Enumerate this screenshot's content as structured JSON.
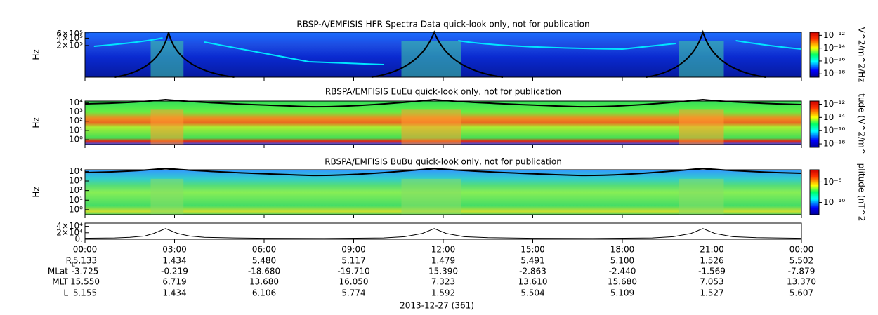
{
  "chart_data": [
    {
      "type": "spectrogram",
      "title": "RBSP-A/EMFISIS  HFR Spectra Data quick-look only, not for publication",
      "y_label": "Hz",
      "log_y": true,
      "ylim": [
        10000,
        700000
      ],
      "yticks": [
        {
          "value": 200000,
          "label": "2×10⁵"
        },
        {
          "value": 400000,
          "label": "4×10⁵"
        },
        {
          "value": 600000,
          "label": "6×10⁵"
        }
      ],
      "colorbar_label": "V^2/m^2/Hz",
      "zlim": [
        3e-19,
        3e-12
      ],
      "zticks": [
        {
          "value": 1e-12,
          "label": "10⁻¹²"
        },
        {
          "value": 1e-14,
          "label": "10⁻¹⁴"
        },
        {
          "value": 1e-16,
          "label": "10⁻¹⁶"
        },
        {
          "value": 1e-18,
          "label": "10⁻¹⁸"
        }
      ]
    },
    {
      "type": "spectrogram",
      "title": "RBSPA/EMFISIS  EuEu quick-look only, not for publication",
      "y_label": "Hz",
      "log_y": true,
      "ylim": [
        0.3,
        15000
      ],
      "yticks": [
        {
          "value": 1,
          "label": "10⁰"
        },
        {
          "value": 10,
          "label": "10¹"
        },
        {
          "value": 100,
          "label": "10²"
        },
        {
          "value": 1000,
          "label": "10³"
        },
        {
          "value": 10000,
          "label": "10⁴"
        }
      ],
      "colorbar_label": "tude (V^2/m^",
      "zlim": [
        3e-19,
        3e-12
      ],
      "zticks": [
        {
          "value": 1e-12,
          "label": "10⁻¹²"
        },
        {
          "value": 1e-14,
          "label": "10⁻¹⁴"
        },
        {
          "value": 1e-16,
          "label": "10⁻¹⁶"
        },
        {
          "value": 1e-18,
          "label": "10⁻¹⁸"
        }
      ]
    },
    {
      "type": "spectrogram",
      "title": "RBSPA/EMFISIS  BuBu quick-look only, not for publication",
      "y_label": "Hz",
      "log_y": true,
      "ylim": [
        0.3,
        15000
      ],
      "yticks": [
        {
          "value": 1,
          "label": "10⁰"
        },
        {
          "value": 10,
          "label": "10¹"
        },
        {
          "value": 100,
          "label": "10²"
        },
        {
          "value": 1000,
          "label": "10³"
        },
        {
          "value": 10000,
          "label": "10⁴"
        }
      ],
      "colorbar_label": "plitude (nT^2",
      "zlim": [
        1e-13,
        0.01
      ],
      "zticks": [
        {
          "value": 1e-05,
          "label": "10⁻⁵"
        },
        {
          "value": 1e-10,
          "label": "10⁻¹⁰"
        }
      ]
    },
    {
      "type": "line",
      "log_y": false,
      "color": "#000000",
      "ylim": [
        0,
        50000
      ],
      "yticks": [
        {
          "value": 0,
          "label": "0."
        },
        {
          "value": 20000,
          "label": "2×10⁴"
        },
        {
          "value": 40000,
          "label": "4×10⁴"
        }
      ],
      "x": [
        0,
        1,
        1.5,
        2,
        2.3,
        2.7,
        3.1,
        3.5,
        4,
        5,
        6,
        8,
        10,
        10.7,
        11.3,
        11.7,
        12.1,
        12.7,
        13.5,
        15,
        17,
        19,
        19.7,
        20.3,
        20.7,
        21.1,
        21.7,
        22.5,
        24
      ],
      "values": [
        3000,
        4000,
        6000,
        10000,
        18000,
        33000,
        18000,
        10000,
        6000,
        4000,
        3000,
        2500,
        4000,
        8000,
        18000,
        33000,
        18000,
        8000,
        5000,
        3000,
        2500,
        4000,
        8000,
        18000,
        33000,
        18000,
        8000,
        5000,
        3000
      ]
    }
  ],
  "time_axis": {
    "xlim": [
      0,
      24
    ],
    "xticks": [
      {
        "value": 0,
        "label": "00:00"
      },
      {
        "value": 3,
        "label": "03:00"
      },
      {
        "value": 6,
        "label": "06:00"
      },
      {
        "value": 9,
        "label": "09:00"
      },
      {
        "value": 12,
        "label": "12:00"
      },
      {
        "value": 15,
        "label": "15:00"
      },
      {
        "value": 18,
        "label": "18:00"
      },
      {
        "value": 21,
        "label": "21:00"
      },
      {
        "value": 24,
        "label": "00:00"
      }
    ],
    "x_label": "2013-12-27 (361)"
  },
  "ephemeris": [
    {
      "label": "R",
      "sub": "E",
      "values": [
        "5.133",
        "1.434",
        "5.480",
        "5.117",
        "1.479",
        "5.491",
        "5.100",
        "1.526",
        "5.502"
      ]
    },
    {
      "label": "MLat",
      "values": [
        "-3.725",
        "-0.219",
        "-18.680",
        "-19.710",
        "15.390",
        "-2.863",
        "-2.440",
        "-1.569",
        "-7.879"
      ]
    },
    {
      "label": "MLT",
      "values": [
        "15.550",
        "6.719",
        "13.680",
        "16.050",
        "7.323",
        "13.610",
        "15.680",
        "7.053",
        "13.370"
      ]
    },
    {
      "label": "L",
      "values": [
        "5.155",
        "1.434",
        "6.106",
        "5.774",
        "1.592",
        "5.504",
        "5.109",
        "1.527",
        "5.607"
      ]
    }
  ]
}
